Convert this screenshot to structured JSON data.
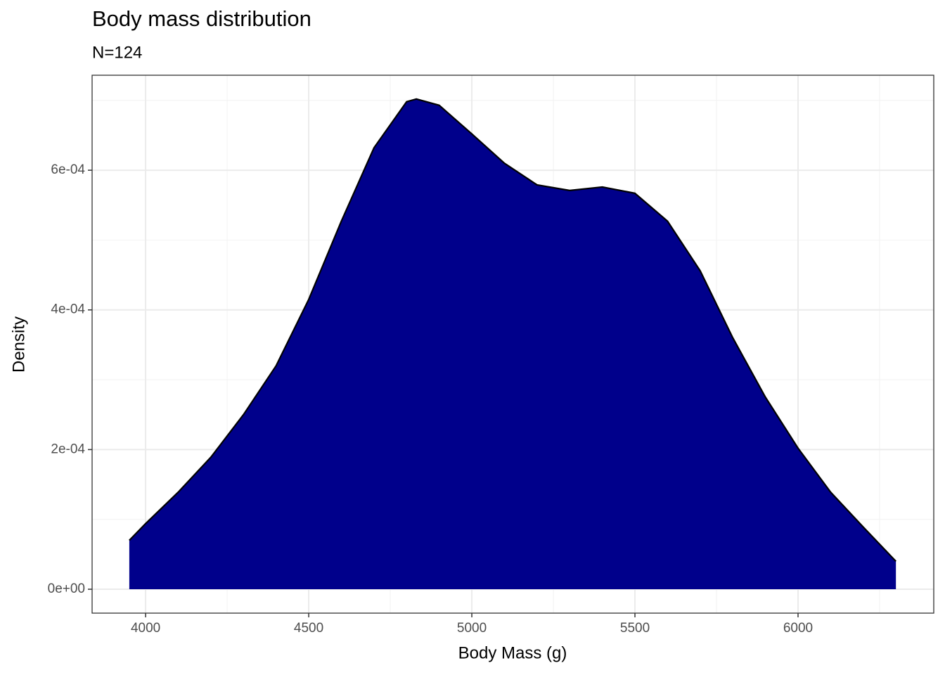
{
  "chart_data": {
    "type": "area",
    "title": "Body mass distribution",
    "subtitle": "N=124",
    "x_label": "Body Mass (g)",
    "y_label": "Density",
    "x": [
      3950,
      4000,
      4100,
      4200,
      4300,
      4400,
      4500,
      4600,
      4700,
      4800,
      4830,
      4900,
      5000,
      5100,
      5200,
      5300,
      5400,
      5500,
      5600,
      5700,
      5800,
      5900,
      6000,
      6100,
      6200,
      6300
    ],
    "values": [
      7e-05,
      9.4e-05,
      0.000139,
      0.000189,
      0.00025,
      0.00032,
      0.000415,
      0.000527,
      0.000632,
      0.000698,
      0.000702,
      0.000693,
      0.000652,
      0.00061,
      0.000579,
      0.000571,
      0.000576,
      0.000567,
      0.000527,
      0.000456,
      0.00036,
      0.000275,
      0.000202,
      0.000139,
      8.9e-05,
      4e-05
    ],
    "color": "#00008b",
    "line_color": "#000000",
    "xlim": [
      3836,
      6416
    ],
    "ylim": [
      -3.42e-05,
      0.000736
    ],
    "xticks": [
      4000,
      4500,
      5000,
      5500,
      6000
    ],
    "yticks": [
      {
        "value": 0,
        "label": "0e+00"
      },
      {
        "value": 0.0002,
        "label": "2e-04"
      },
      {
        "value": 0.0004,
        "label": "4e-04"
      },
      {
        "value": 0.0006,
        "label": "6e-04"
      }
    ],
    "x_minor_grid": [
      4250,
      4750,
      5250,
      5750,
      6250
    ],
    "y_minor_grid": [
      0.0001,
      0.0003,
      0.0005,
      0.0007
    ],
    "grid": true
  }
}
